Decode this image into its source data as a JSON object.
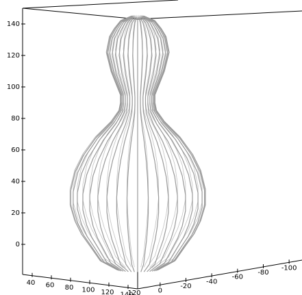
{
  "chart_data": {
    "type": "surface3d",
    "z": [
      -16,
      -10,
      0,
      7,
      15,
      25,
      35,
      47,
      57,
      68,
      78,
      85,
      90,
      95,
      100,
      110,
      122,
      132,
      137,
      142,
      145
    ],
    "radius": [
      13,
      24,
      31,
      36,
      40,
      43,
      43,
      40,
      35,
      27,
      17,
      12,
      11,
      11,
      13,
      17,
      20,
      18,
      15,
      11,
      4
    ],
    "meridians": 40,
    "color": "#999999",
    "zlim": [
      -20,
      150
    ],
    "zticks": [
      0,
      20,
      40,
      60,
      80,
      100,
      120,
      140
    ],
    "xlim": [
      30,
      150
    ],
    "xticks": [
      40,
      60,
      80,
      100,
      120,
      140
    ],
    "ylim": [
      10,
      -110
    ],
    "yticks": [
      0,
      -20,
      -40,
      -60,
      -80,
      -100
    ],
    "corner_label": "120"
  }
}
